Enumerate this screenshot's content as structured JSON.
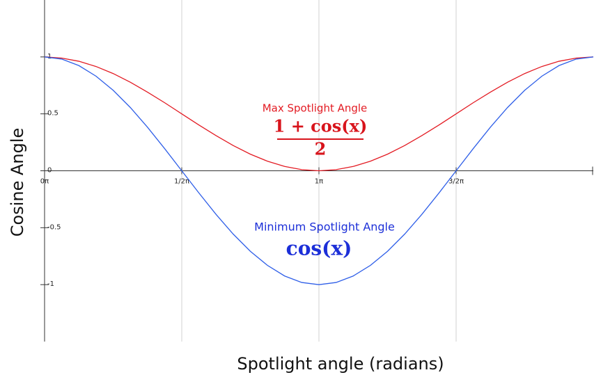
{
  "chart_data": {
    "type": "line",
    "y_label": "Cosine Angle",
    "x_label": "Spotlight angle (radians)",
    "x": [
      0,
      0.0625,
      0.125,
      0.1875,
      0.25,
      0.3125,
      0.375,
      0.4375,
      0.5,
      0.5625,
      0.625,
      0.6875,
      0.75,
      0.8125,
      0.875,
      0.9375,
      1,
      1.0625,
      1.125,
      1.1875,
      1.25,
      1.3125,
      1.375,
      1.4375,
      1.5,
      1.5625,
      1.625,
      1.6875,
      1.75,
      1.8125,
      1.875,
      1.9375,
      2
    ],
    "series": [
      {
        "name": "Max Spotlight Angle",
        "color": "#e31b23",
        "values": [
          1,
          0.99,
          0.962,
          0.916,
          0.854,
          0.778,
          0.691,
          0.598,
          0.5,
          0.402,
          0.309,
          0.222,
          0.146,
          0.084,
          0.038,
          0.01,
          0,
          0.01,
          0.038,
          0.084,
          0.146,
          0.222,
          0.309,
          0.402,
          0.5,
          0.598,
          0.691,
          0.778,
          0.854,
          0.916,
          0.962,
          0.99,
          1
        ]
      },
      {
        "name": "Minimum Spotlight Angle",
        "color": "#2f5fe8",
        "values": [
          1,
          0.981,
          0.924,
          0.831,
          0.707,
          0.556,
          0.383,
          0.195,
          0,
          -0.195,
          -0.383,
          -0.556,
          -0.707,
          -0.831,
          -0.924,
          -0.981,
          -1,
          -0.981,
          -0.924,
          -0.831,
          -0.707,
          -0.556,
          -0.383,
          -0.195,
          0,
          0.195,
          0.383,
          0.556,
          0.707,
          0.831,
          0.924,
          0.981,
          1
        ]
      }
    ],
    "max_formula_numerator": "1 + cos(x)",
    "max_formula_denominator": "2",
    "min_formula": "cos(x)",
    "xlim": [
      0,
      2
    ],
    "xticks": [
      {
        "value": 0,
        "label": "0π"
      },
      {
        "value": 0.5,
        "label": "1/2π"
      },
      {
        "value": 1,
        "label": "1π"
      },
      {
        "value": 1.5,
        "label": "3/2π"
      }
    ],
    "ylim": [
      -1.5,
      1.5
    ],
    "yticks": [
      1,
      0.5,
      0,
      -0.5,
      -1
    ],
    "grid": true
  }
}
